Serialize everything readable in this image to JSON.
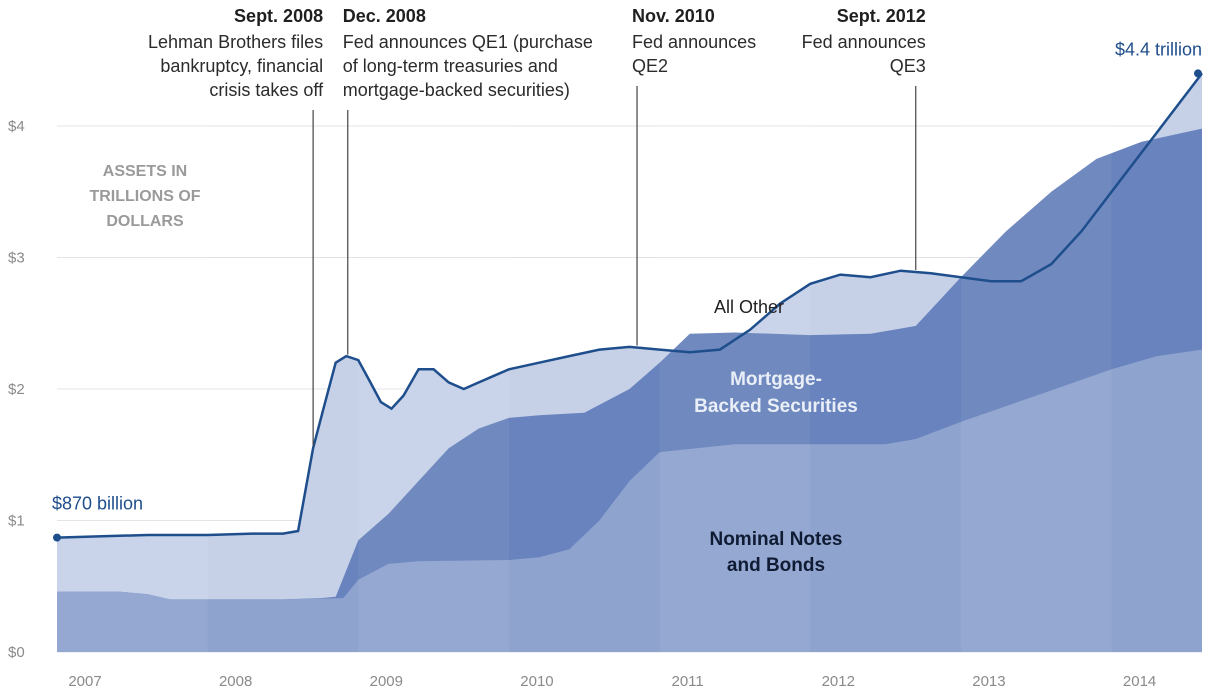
{
  "chart_data": {
    "type": "area",
    "y_ticks": [
      "$0",
      "$1",
      "$2",
      "$3",
      "$4"
    ],
    "ylim": [
      0,
      4.4
    ],
    "x_ticks": [
      "2007",
      "2008",
      "2009",
      "2010",
      "2011",
      "2012",
      "2013",
      "2014"
    ],
    "xlim": [
      2007.0,
      2014.6
    ],
    "y_axis_note": "ASSETS IN TRILLIONS OF DOLLARS",
    "start_label": "$870 billion",
    "end_label": "$4.4 trillion",
    "series": [
      {
        "name": "Nominal Notes and Bonds",
        "label_lines": [
          "Nominal Notes",
          "and Bonds"
        ],
        "color": "#8fa3cf",
        "points": [
          [
            2007.0,
            0.46
          ],
          [
            2007.4,
            0.46
          ],
          [
            2007.6,
            0.44
          ],
          [
            2007.75,
            0.4
          ],
          [
            2008.0,
            0.4
          ],
          [
            2008.5,
            0.4
          ],
          [
            2008.9,
            0.41
          ],
          [
            2009.0,
            0.55
          ],
          [
            2009.2,
            0.67
          ],
          [
            2009.4,
            0.69
          ],
          [
            2010.0,
            0.7
          ],
          [
            2010.2,
            0.72
          ],
          [
            2010.4,
            0.78
          ],
          [
            2010.6,
            1.0
          ],
          [
            2010.8,
            1.3
          ],
          [
            2011.0,
            1.52
          ],
          [
            2011.5,
            1.58
          ],
          [
            2012.0,
            1.58
          ],
          [
            2012.5,
            1.58
          ],
          [
            2012.7,
            1.62
          ],
          [
            2013.0,
            1.75
          ],
          [
            2013.5,
            1.95
          ],
          [
            2014.0,
            2.15
          ],
          [
            2014.3,
            2.25
          ],
          [
            2014.6,
            2.3
          ]
        ]
      },
      {
        "name": "Mortgage-Backed Securities",
        "label_lines": [
          "Mortgage-",
          "Backed Securities"
        ],
        "color": "#6883bd",
        "points": [
          [
            2007.0,
            0.46
          ],
          [
            2007.4,
            0.46
          ],
          [
            2007.6,
            0.44
          ],
          [
            2007.75,
            0.4
          ],
          [
            2008.0,
            0.4
          ],
          [
            2008.5,
            0.4
          ],
          [
            2008.75,
            0.41
          ],
          [
            2008.85,
            0.42
          ],
          [
            2009.0,
            0.85
          ],
          [
            2009.2,
            1.05
          ],
          [
            2009.4,
            1.3
          ],
          [
            2009.6,
            1.55
          ],
          [
            2009.8,
            1.7
          ],
          [
            2010.0,
            1.78
          ],
          [
            2010.2,
            1.8
          ],
          [
            2010.5,
            1.82
          ],
          [
            2010.8,
            2.0
          ],
          [
            2011.0,
            2.2
          ],
          [
            2011.2,
            2.42
          ],
          [
            2011.5,
            2.43
          ],
          [
            2012.0,
            2.41
          ],
          [
            2012.4,
            2.42
          ],
          [
            2012.7,
            2.48
          ],
          [
            2013.0,
            2.85
          ],
          [
            2013.3,
            3.2
          ],
          [
            2013.6,
            3.5
          ],
          [
            2013.9,
            3.75
          ],
          [
            2014.2,
            3.88
          ],
          [
            2014.6,
            3.98
          ]
        ]
      },
      {
        "name": "All Other",
        "label_lines": [
          "All Other"
        ],
        "color": "#c6d1e8",
        "points": [
          [
            2007.0,
            0.87
          ],
          [
            2007.3,
            0.88
          ],
          [
            2007.6,
            0.89
          ],
          [
            2008.0,
            0.89
          ],
          [
            2008.3,
            0.9
          ],
          [
            2008.5,
            0.9
          ],
          [
            2008.6,
            0.92
          ],
          [
            2008.7,
            1.55
          ],
          [
            2008.78,
            1.9
          ],
          [
            2008.85,
            2.2
          ],
          [
            2008.92,
            2.25
          ],
          [
            2009.0,
            2.22
          ],
          [
            2009.08,
            2.05
          ],
          [
            2009.15,
            1.9
          ],
          [
            2009.22,
            1.85
          ],
          [
            2009.3,
            1.95
          ],
          [
            2009.4,
            2.15
          ],
          [
            2009.5,
            2.15
          ],
          [
            2009.6,
            2.05
          ],
          [
            2009.7,
            2.0
          ],
          [
            2009.8,
            2.05
          ],
          [
            2009.9,
            2.1
          ],
          [
            2010.0,
            2.15
          ],
          [
            2010.2,
            2.2
          ],
          [
            2010.4,
            2.25
          ],
          [
            2010.6,
            2.3
          ],
          [
            2010.8,
            2.32
          ],
          [
            2011.0,
            2.3
          ],
          [
            2011.2,
            2.28
          ],
          [
            2011.4,
            2.3
          ],
          [
            2011.6,
            2.45
          ],
          [
            2011.8,
            2.65
          ],
          [
            2012.0,
            2.8
          ],
          [
            2012.2,
            2.87
          ],
          [
            2012.4,
            2.85
          ],
          [
            2012.6,
            2.9
          ],
          [
            2012.8,
            2.88
          ],
          [
            2013.0,
            2.85
          ],
          [
            2013.2,
            2.82
          ],
          [
            2013.4,
            2.82
          ],
          [
            2013.6,
            2.95
          ],
          [
            2013.8,
            3.2
          ],
          [
            2014.0,
            3.5
          ],
          [
            2014.3,
            3.95
          ],
          [
            2014.6,
            4.4
          ]
        ]
      }
    ],
    "annotations": [
      {
        "x": 2008.7,
        "title": "Sept. 2008",
        "lines": [
          "Lehman Brothers files",
          "bankruptcy, financial",
          "crisis takes off"
        ],
        "align": "right"
      },
      {
        "x": 2008.93,
        "title": "Dec. 2008",
        "lines": [
          "Fed announces QE1 (purchase",
          "of long-term treasuries and",
          "mortgage-backed securities)"
        ],
        "align": "left"
      },
      {
        "x": 2010.85,
        "title": "Nov. 2010",
        "lines": [
          "Fed announces",
          "QE2"
        ],
        "align": "left"
      },
      {
        "x": 2012.7,
        "title": "Sept. 2012",
        "lines": [
          "Fed announces",
          "QE3"
        ],
        "align": "right"
      }
    ]
  }
}
